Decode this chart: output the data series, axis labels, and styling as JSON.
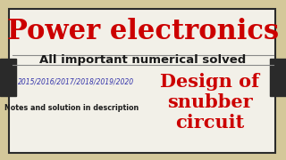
{
  "bg_color": "#d4c89a",
  "inner_bg": "#f2f0e8",
  "border_inner": "#2a2a2a",
  "title_text": "Power electronics",
  "title_color": "#cc0000",
  "subtitle_text": "All important numerical solved",
  "subtitle_color": "#1a1a1a",
  "years_text": "2015/2016/2017/2018/2019/2020",
  "years_color": "#3333aa",
  "notes_text": "Notes and solution in description",
  "notes_color": "#1a1a1a",
  "design_line1": "Design of",
  "design_line2": "snubber",
  "design_line3": "circuit",
  "design_color": "#cc0000",
  "side_block_color": "#2a2a2a",
  "line_color": "#888888"
}
